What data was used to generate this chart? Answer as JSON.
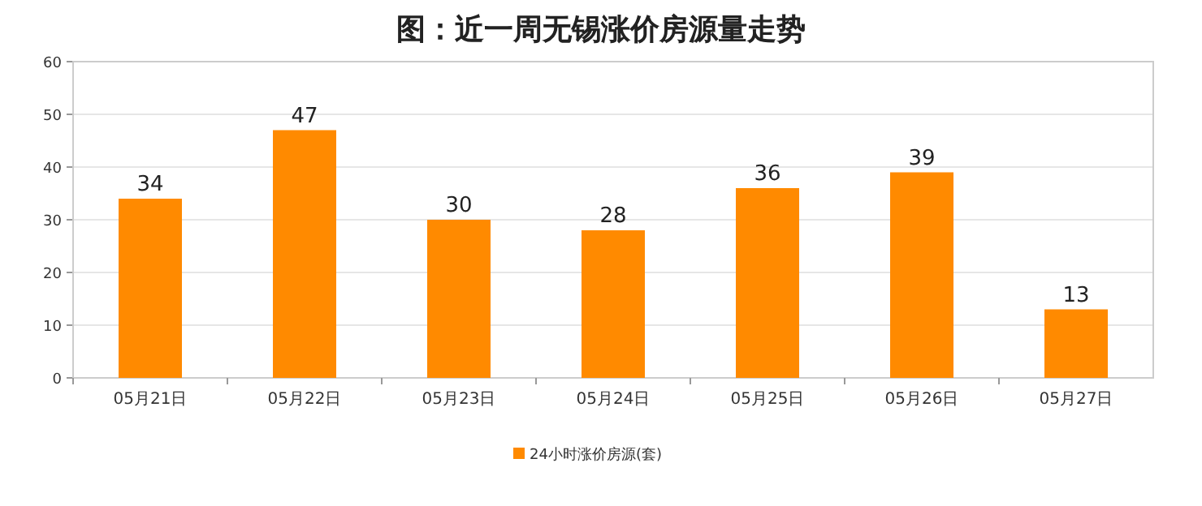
{
  "chart_data": {
    "type": "bar",
    "title": "图：近一周无锡涨价房源量走势",
    "categories": [
      "05月21日",
      "05月22日",
      "05月23日",
      "05月24日",
      "05月25日",
      "05月26日",
      "05月27日"
    ],
    "series": [
      {
        "name": "24小时涨价房源(套)",
        "color": "#ff8a00",
        "values": [
          34,
          47,
          30,
          28,
          36,
          39,
          13
        ]
      }
    ],
    "ylim": [
      0,
      60
    ],
    "yticks": [
      0,
      10,
      20,
      30,
      40,
      50,
      60
    ],
    "grid": "y",
    "legend": "bottom",
    "data_labels": true
  }
}
